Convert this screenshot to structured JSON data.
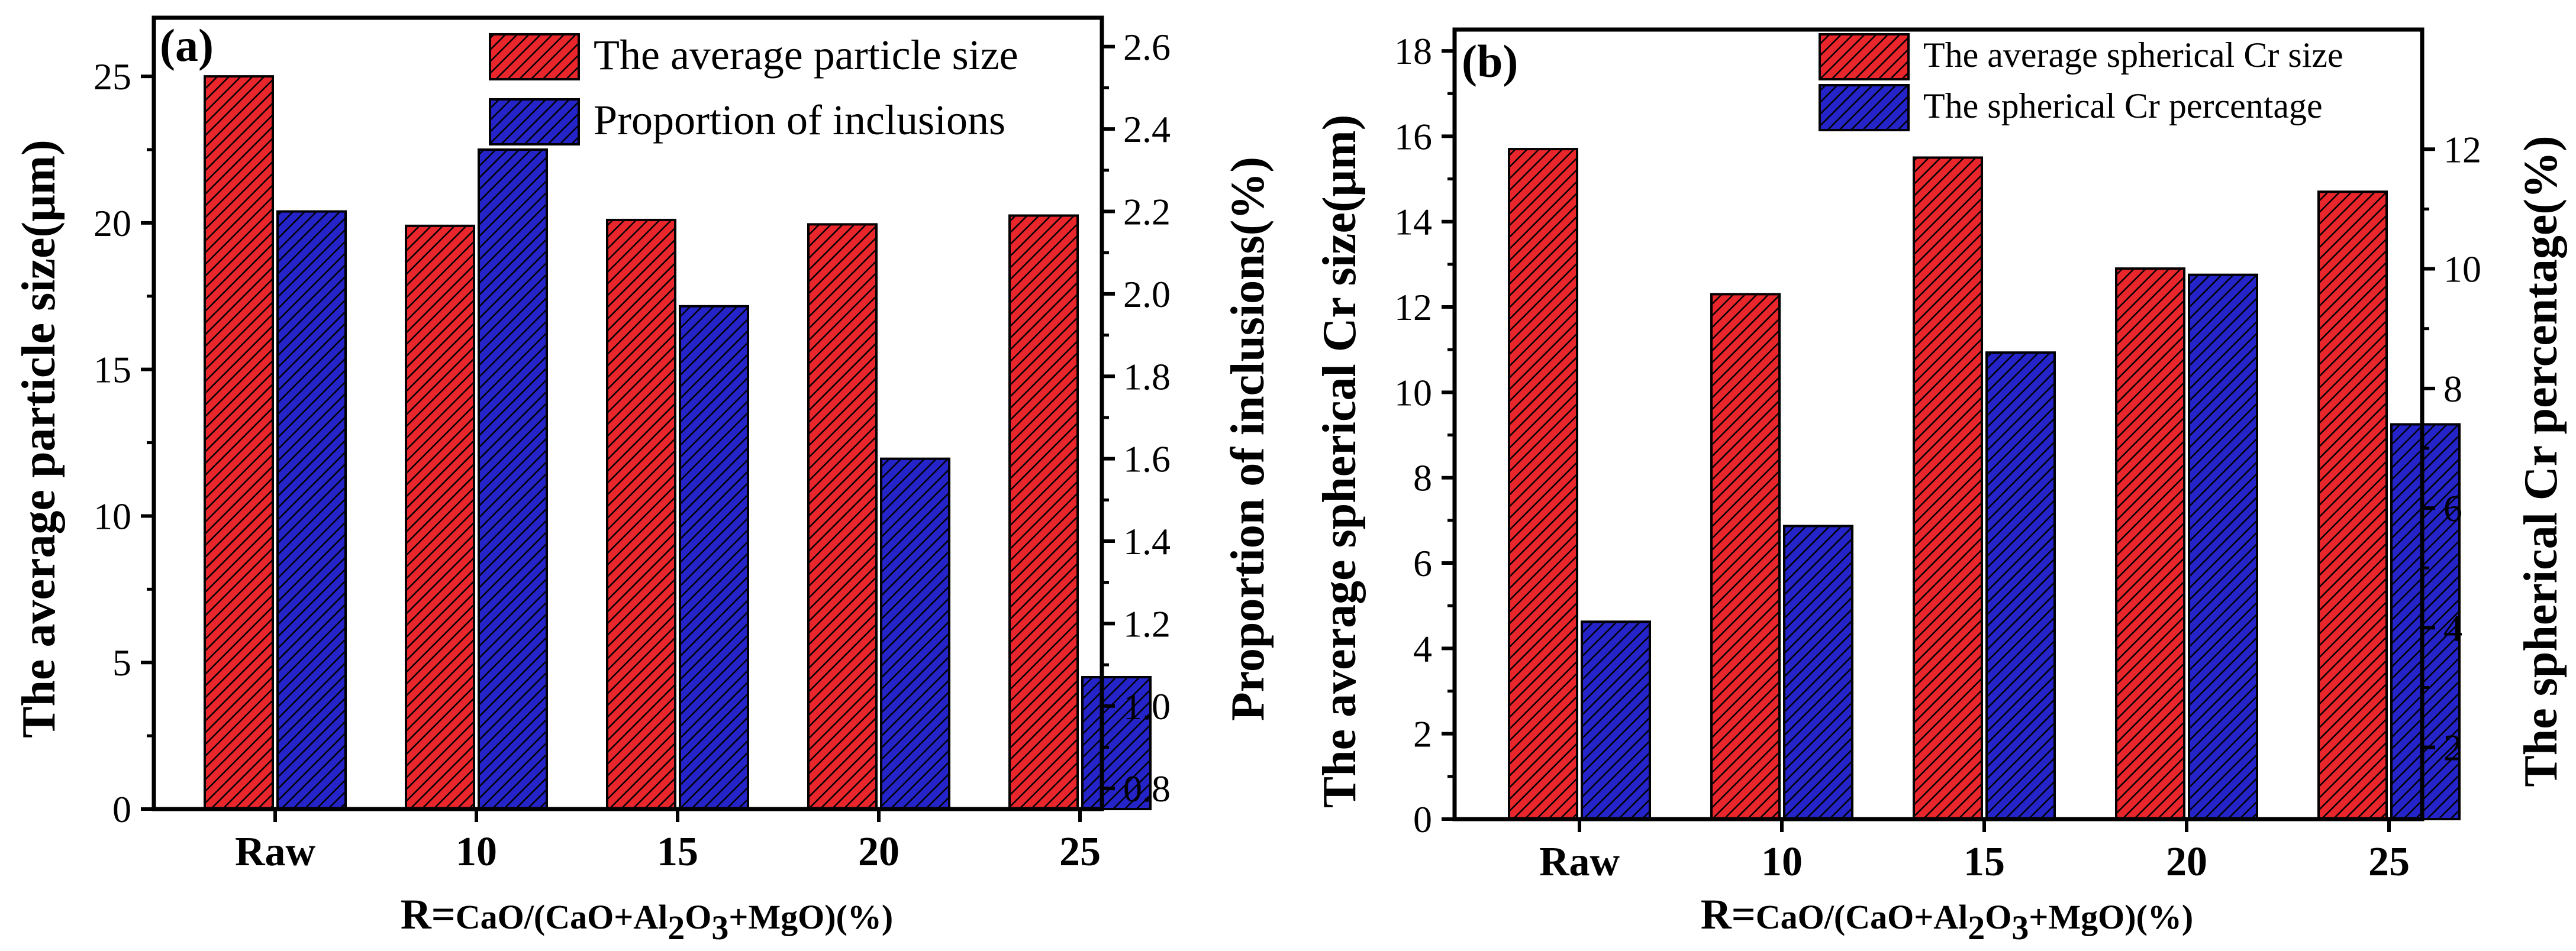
{
  "colors": {
    "series1": "#e8262b",
    "series2": "#2424c8",
    "axis": "#000000"
  },
  "chart_data": [
    {
      "type": "bar",
      "panel_label": "(a)",
      "categories": [
        "Raw",
        "10",
        "15",
        "20",
        "25"
      ],
      "xlabel": {
        "prefix": "R=",
        "body": "CaO/(CaO+Al",
        "sub1": "2",
        "mid": "O",
        "sub2": "3",
        "tail": "+MgO)(%)"
      },
      "ylabel": "The average particle size(μm)",
      "ylabel_right": "Proportion of inclusions(%)",
      "ylim": [
        0,
        27
      ],
      "yticks": [
        "0",
        "5",
        "10",
        "15",
        "20",
        "25"
      ],
      "ylim_right": [
        0.75,
        2.67
      ],
      "yticks_right": [
        "0.8",
        "1.0",
        "1.2",
        "1.4",
        "1.6",
        "1.8",
        "2.0",
        "2.2",
        "2.4",
        "2.6"
      ],
      "legend_position": "top-right",
      "series": [
        {
          "name": "The average particle size",
          "axis": "left",
          "values": [
            25.0,
            19.9,
            20.1,
            19.95,
            20.25
          ]
        },
        {
          "name": "Proportion of inclusions",
          "axis": "right",
          "values": [
            2.2,
            2.35,
            1.97,
            1.6,
            1.07
          ]
        }
      ]
    },
    {
      "type": "bar",
      "panel_label": "(b)",
      "categories": [
        "Raw",
        "10",
        "15",
        "20",
        "25"
      ],
      "xlabel": {
        "prefix": "R=",
        "body": "CaO/(CaO+Al",
        "sub1": "2",
        "mid": "O",
        "sub2": "3",
        "tail": "+MgO)(%)"
      },
      "ylabel": "The average spherical Cr size(μm)",
      "ylabel_right": "The spherical Cr percentage(%)",
      "ylim": [
        0,
        18.5
      ],
      "yticks": [
        "0",
        "2",
        "4",
        "6",
        "8",
        "10",
        "12",
        "14",
        "16",
        "18"
      ],
      "ylim_right": [
        0.8,
        14.0
      ],
      "yticks_right": [
        "2",
        "4",
        "6",
        "8",
        "10",
        "12"
      ],
      "legend_position": "top-right",
      "series": [
        {
          "name": "The average spherical Cr size",
          "axis": "left",
          "values": [
            15.7,
            12.3,
            15.5,
            12.9,
            14.7
          ]
        },
        {
          "name": "The spherical Cr percentage",
          "axis": "right",
          "values": [
            4.1,
            5.7,
            8.6,
            9.9,
            7.4
          ]
        }
      ]
    }
  ]
}
